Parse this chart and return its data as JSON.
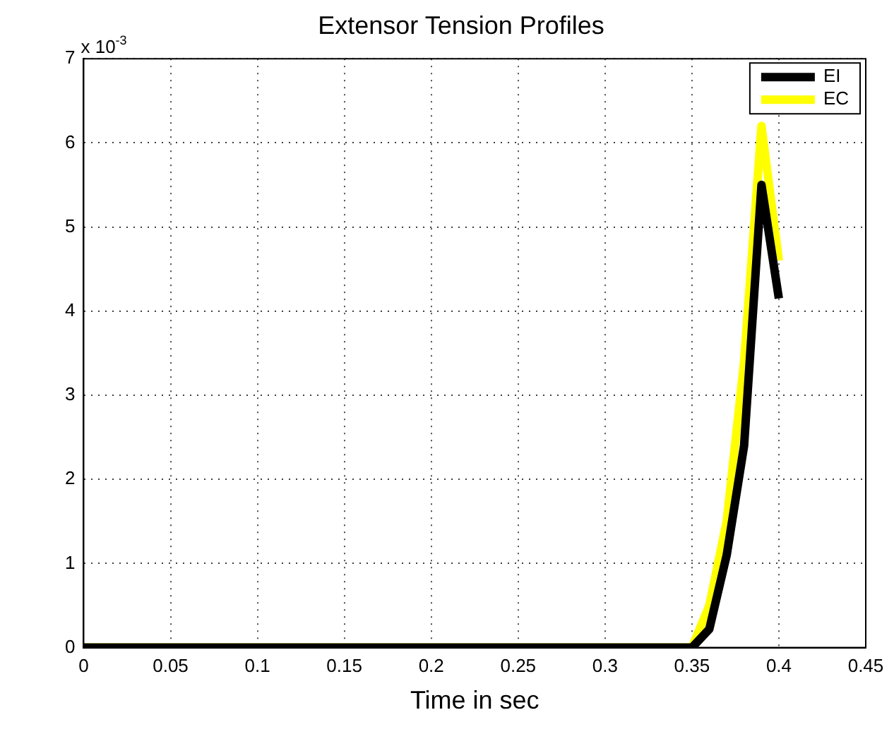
{
  "chart_data": {
    "type": "line",
    "title": "Extensor Tension Profiles",
    "xlabel": "Time in sec",
    "annotations": [
      "x 10$^{-3}$"
    ],
    "series": [
      {
        "name": "EI",
        "color": "#000000",
        "x": [
          0,
          0.35,
          0.36,
          0.37,
          0.38,
          0.39,
          0.4
        ],
        "values": [
          0,
          0,
          0.22,
          1.1,
          2.4,
          5.5,
          4.15
        ]
      },
      {
        "name": "EC",
        "color": "#ffff00",
        "x": [
          0,
          0.35,
          0.36,
          0.37,
          0.38,
          0.39,
          0.4
        ],
        "values": [
          0,
          0,
          0.5,
          1.5,
          3.4,
          6.2,
          4.6
        ]
      }
    ],
    "xlim": [
      0,
      0.45
    ],
    "xticks": [
      0,
      0.05,
      0.1,
      0.15,
      0.2,
      0.25,
      0.3,
      0.35,
      0.4,
      0.45
    ],
    "ylim": [
      0,
      7
    ],
    "yticks": [
      0,
      1,
      2,
      3,
      4,
      5,
      6,
      7
    ],
    "grid": true,
    "legend": "top right",
    "marker": "none",
    "line_style": "solid"
  }
}
